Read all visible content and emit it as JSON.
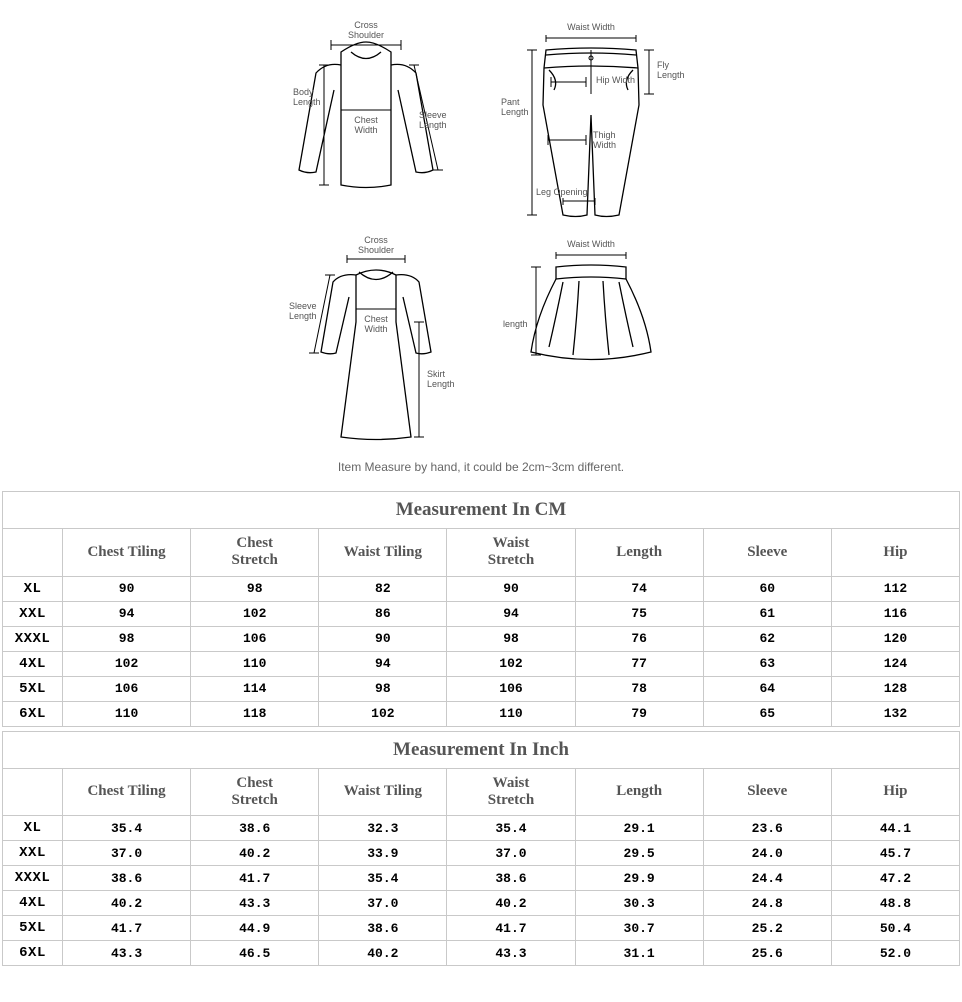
{
  "diagrams": {
    "shirt": {
      "cross_shoulder": "Cross",
      "cross_shoulder2": "Shoulder",
      "body_length": "Body",
      "body_length2": "Length",
      "chest_width": "Chest",
      "chest_width2": "Width",
      "sleeve_length": "Sleeve",
      "sleeve_length2": "Length"
    },
    "pants": {
      "waist_width": "Waist Width",
      "hip_width": "Hip Width",
      "pant_length": "Pant",
      "pant_length2": "Length",
      "fly_length": "Fly",
      "fly_length2": "Length",
      "thigh_width": "Thigh",
      "thigh_width2": "Width",
      "leg_opening": "Leg Opening"
    },
    "dress": {
      "cross_shoulder": "Cross",
      "cross_shoulder2": "Shoulder",
      "sleeve_length": "Sleeve",
      "sleeve_length2": "Length",
      "chest_width": "Chest",
      "chest_width2": "Width",
      "skirt_length": "Skirt",
      "skirt_length2": "Length"
    },
    "skirt": {
      "waist_width": "Waist Width",
      "length": "length"
    }
  },
  "note": "Item Measure by hand, it could be 2cm~3cm different.",
  "table_cm": {
    "title": "Measurement In CM",
    "columns": [
      "Chest Tiling",
      "Chest Stretch",
      "Waist Tiling",
      "Waist Stretch",
      "Length",
      "Sleeve",
      "Hip"
    ],
    "rows": [
      {
        "size": "XL",
        "v": [
          "90",
          "98",
          "82",
          "90",
          "74",
          "60",
          "112"
        ]
      },
      {
        "size": "XXL",
        "v": [
          "94",
          "102",
          "86",
          "94",
          "75",
          "61",
          "116"
        ]
      },
      {
        "size": "XXXL",
        "v": [
          "98",
          "106",
          "90",
          "98",
          "76",
          "62",
          "120"
        ]
      },
      {
        "size": "4XL",
        "v": [
          "102",
          "110",
          "94",
          "102",
          "77",
          "63",
          "124"
        ]
      },
      {
        "size": "5XL",
        "v": [
          "106",
          "114",
          "98",
          "106",
          "78",
          "64",
          "128"
        ]
      },
      {
        "size": "6XL",
        "v": [
          "110",
          "118",
          "102",
          "110",
          "79",
          "65",
          "132"
        ]
      }
    ]
  },
  "table_inch": {
    "title": "Measurement In Inch",
    "columns": [
      "Chest Tiling",
      "Chest Stretch",
      "Waist Tiling",
      "Waist Stretch",
      "Length",
      "Sleeve",
      "Hip"
    ],
    "rows": [
      {
        "size": "XL",
        "v": [
          "35.4",
          "38.6",
          "32.3",
          "35.4",
          "29.1",
          "23.6",
          "44.1"
        ]
      },
      {
        "size": "XXL",
        "v": [
          "37.0",
          "40.2",
          "33.9",
          "37.0",
          "29.5",
          "24.0",
          "45.7"
        ]
      },
      {
        "size": "XXXL",
        "v": [
          "38.6",
          "41.7",
          "35.4",
          "38.6",
          "29.9",
          "24.4",
          "47.2"
        ]
      },
      {
        "size": "4XL",
        "v": [
          "40.2",
          "43.3",
          "37.0",
          "40.2",
          "30.3",
          "24.8",
          "48.8"
        ]
      },
      {
        "size": "5XL",
        "v": [
          "41.7",
          "44.9",
          "38.6",
          "41.7",
          "30.7",
          "25.2",
          "50.4"
        ]
      },
      {
        "size": "6XL",
        "v": [
          "43.3",
          "46.5",
          "40.2",
          "43.3",
          "31.1",
          "25.6",
          "52.0"
        ]
      }
    ]
  },
  "styling": {
    "border_color": "#c9c9c9",
    "header_text_color": "#555555",
    "value_font": "Courier New",
    "background": "#ffffff",
    "diagram_line_color": "#000000",
    "diagram_label_color": "#555555"
  }
}
